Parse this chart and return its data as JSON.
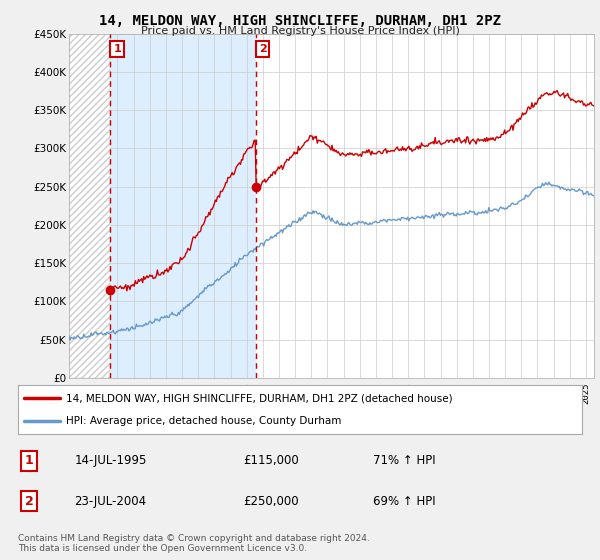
{
  "title": "14, MELDON WAY, HIGH SHINCLIFFE, DURHAM, DH1 2PZ",
  "subtitle": "Price paid vs. HM Land Registry's House Price Index (HPI)",
  "ylim": [
    0,
    450000
  ],
  "yticks": [
    0,
    50000,
    100000,
    150000,
    200000,
    250000,
    300000,
    350000,
    400000,
    450000
  ],
  "ytick_labels": [
    "£0",
    "£50K",
    "£100K",
    "£150K",
    "£200K",
    "£250K",
    "£300K",
    "£350K",
    "£400K",
    "£450K"
  ],
  "sale1_date": 1995.54,
  "sale1_price": 115000,
  "sale2_date": 2004.56,
  "sale2_price": 250000,
  "hpi_color": "#6699cc",
  "price_color": "#cc0000",
  "marker_color": "#cc0000",
  "vline_color": "#cc0000",
  "hatch_color": "#cccccc",
  "blue_bg_color": "#ddeeff",
  "legend1_label": "14, MELDON WAY, HIGH SHINCLIFFE, DURHAM, DH1 2PZ (detached house)",
  "legend2_label": "HPI: Average price, detached house, County Durham",
  "table_row1_date": "14-JUL-1995",
  "table_row1_price": "£115,000",
  "table_row1_hpi": "71% ↑ HPI",
  "table_row2_date": "23-JUL-2004",
  "table_row2_price": "£250,000",
  "table_row2_hpi": "69% ↑ HPI",
  "footer": "Contains HM Land Registry data © Crown copyright and database right 2024.\nThis data is licensed under the Open Government Licence v3.0.",
  "background_color": "#f0f0f0",
  "plot_bg_color": "#ffffff",
  "xstart": 1993,
  "xend": 2025.5
}
